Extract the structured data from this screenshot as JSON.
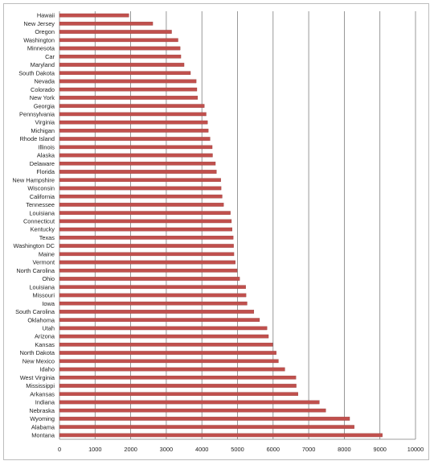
{
  "chart_data": {
    "type": "bar",
    "orientation": "horizontal",
    "categories": [
      "Hawaii",
      "New Jersey",
      "Oregon",
      "Washington",
      "Minnesota",
      "Car",
      "Maryland",
      "South Dakota",
      "Nevada",
      "Colorado",
      "New York",
      "Georgia",
      "Pennsylvania",
      "Virginia",
      "Michigan",
      "Rhode Island",
      "Illinois",
      "Alaska",
      "Delaware",
      "Florida",
      "New Hampshire",
      "Wisconsin",
      "California",
      "Tennessee",
      "Louisiana",
      "Connecticut",
      "Kentucky",
      "Texas",
      "Washington DC",
      "Maine",
      "Vermont",
      "North Carolina",
      "Ohio",
      "Louisiana",
      "Missouri",
      "Iowa",
      "South Carolina",
      "Oklahoma",
      "Utah",
      "Arizona",
      "Kansas",
      "North Dakota",
      "New Mexico",
      "Idaho",
      "West Virginia",
      "Mississippi",
      "Arkansas",
      "Indiana",
      "Nebraska",
      "Wyoming",
      "Alabama",
      "Montana"
    ],
    "values": [
      1950,
      2620,
      3150,
      3330,
      3390,
      3410,
      3500,
      3680,
      3840,
      3860,
      3880,
      4070,
      4120,
      4160,
      4180,
      4230,
      4290,
      4300,
      4380,
      4410,
      4530,
      4540,
      4570,
      4610,
      4800,
      4830,
      4850,
      4880,
      4890,
      4900,
      4940,
      4990,
      5060,
      5230,
      5240,
      5270,
      5460,
      5620,
      5830,
      5870,
      5990,
      6090,
      6150,
      6330,
      6640,
      6650,
      6700,
      7300,
      7480,
      8150,
      8280,
      9070
    ],
    "xlim": [
      0,
      10000
    ],
    "x_ticks": [
      0,
      1000,
      2000,
      3000,
      4000,
      5000,
      6000,
      7000,
      8000,
      9000,
      10000
    ],
    "title": "",
    "xlabel": "",
    "ylabel": "",
    "grid": "vertical",
    "legend": "none",
    "colors": {
      "bar": "#c0504d",
      "bar_shadow": "#8c3431",
      "grid": "#7f7f7f",
      "axis": "#7f7f7f"
    }
  }
}
